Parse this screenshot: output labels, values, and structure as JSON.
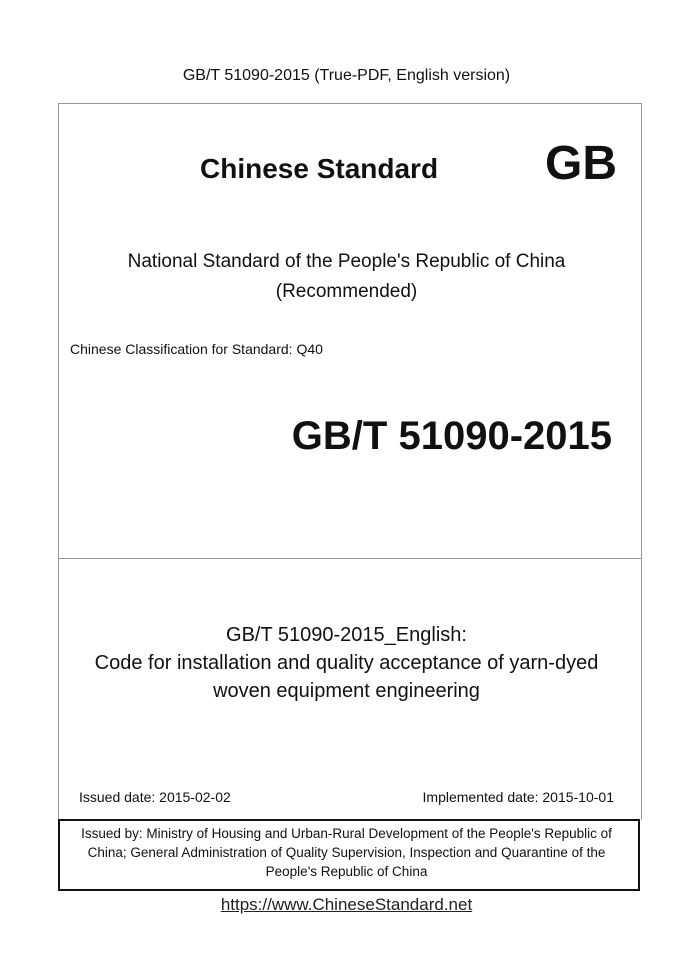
{
  "header": {
    "text": "GB/T 51090-2015 (True-PDF, English version)"
  },
  "cover": {
    "title": "Chinese Standard",
    "badge": "GB",
    "subtitle_line1": "National Standard of the People's Republic of China",
    "subtitle_line2": "(Recommended)",
    "classification": "Chinese Classification for Standard: Q40",
    "standard_number": "GB/T 51090-2015"
  },
  "document": {
    "title_line1": "GB/T 51090-2015_English:",
    "title_line2": "Code for installation and quality acceptance of yarn-dyed",
    "title_line3": "woven equipment engineering",
    "issued_date": "Issued date: 2015-02-02",
    "implemented_date": "Implemented date: 2015-10-01"
  },
  "issuer": {
    "line1": "Issued by: Ministry of Housing and Urban-Rural Development of the People's Republic of",
    "line2": "China; General Administration of Quality Supervision, Inspection and Quarantine of the",
    "line3": "People's Republic of China"
  },
  "footer": {
    "link": "https://www.ChineseStandard.net"
  }
}
